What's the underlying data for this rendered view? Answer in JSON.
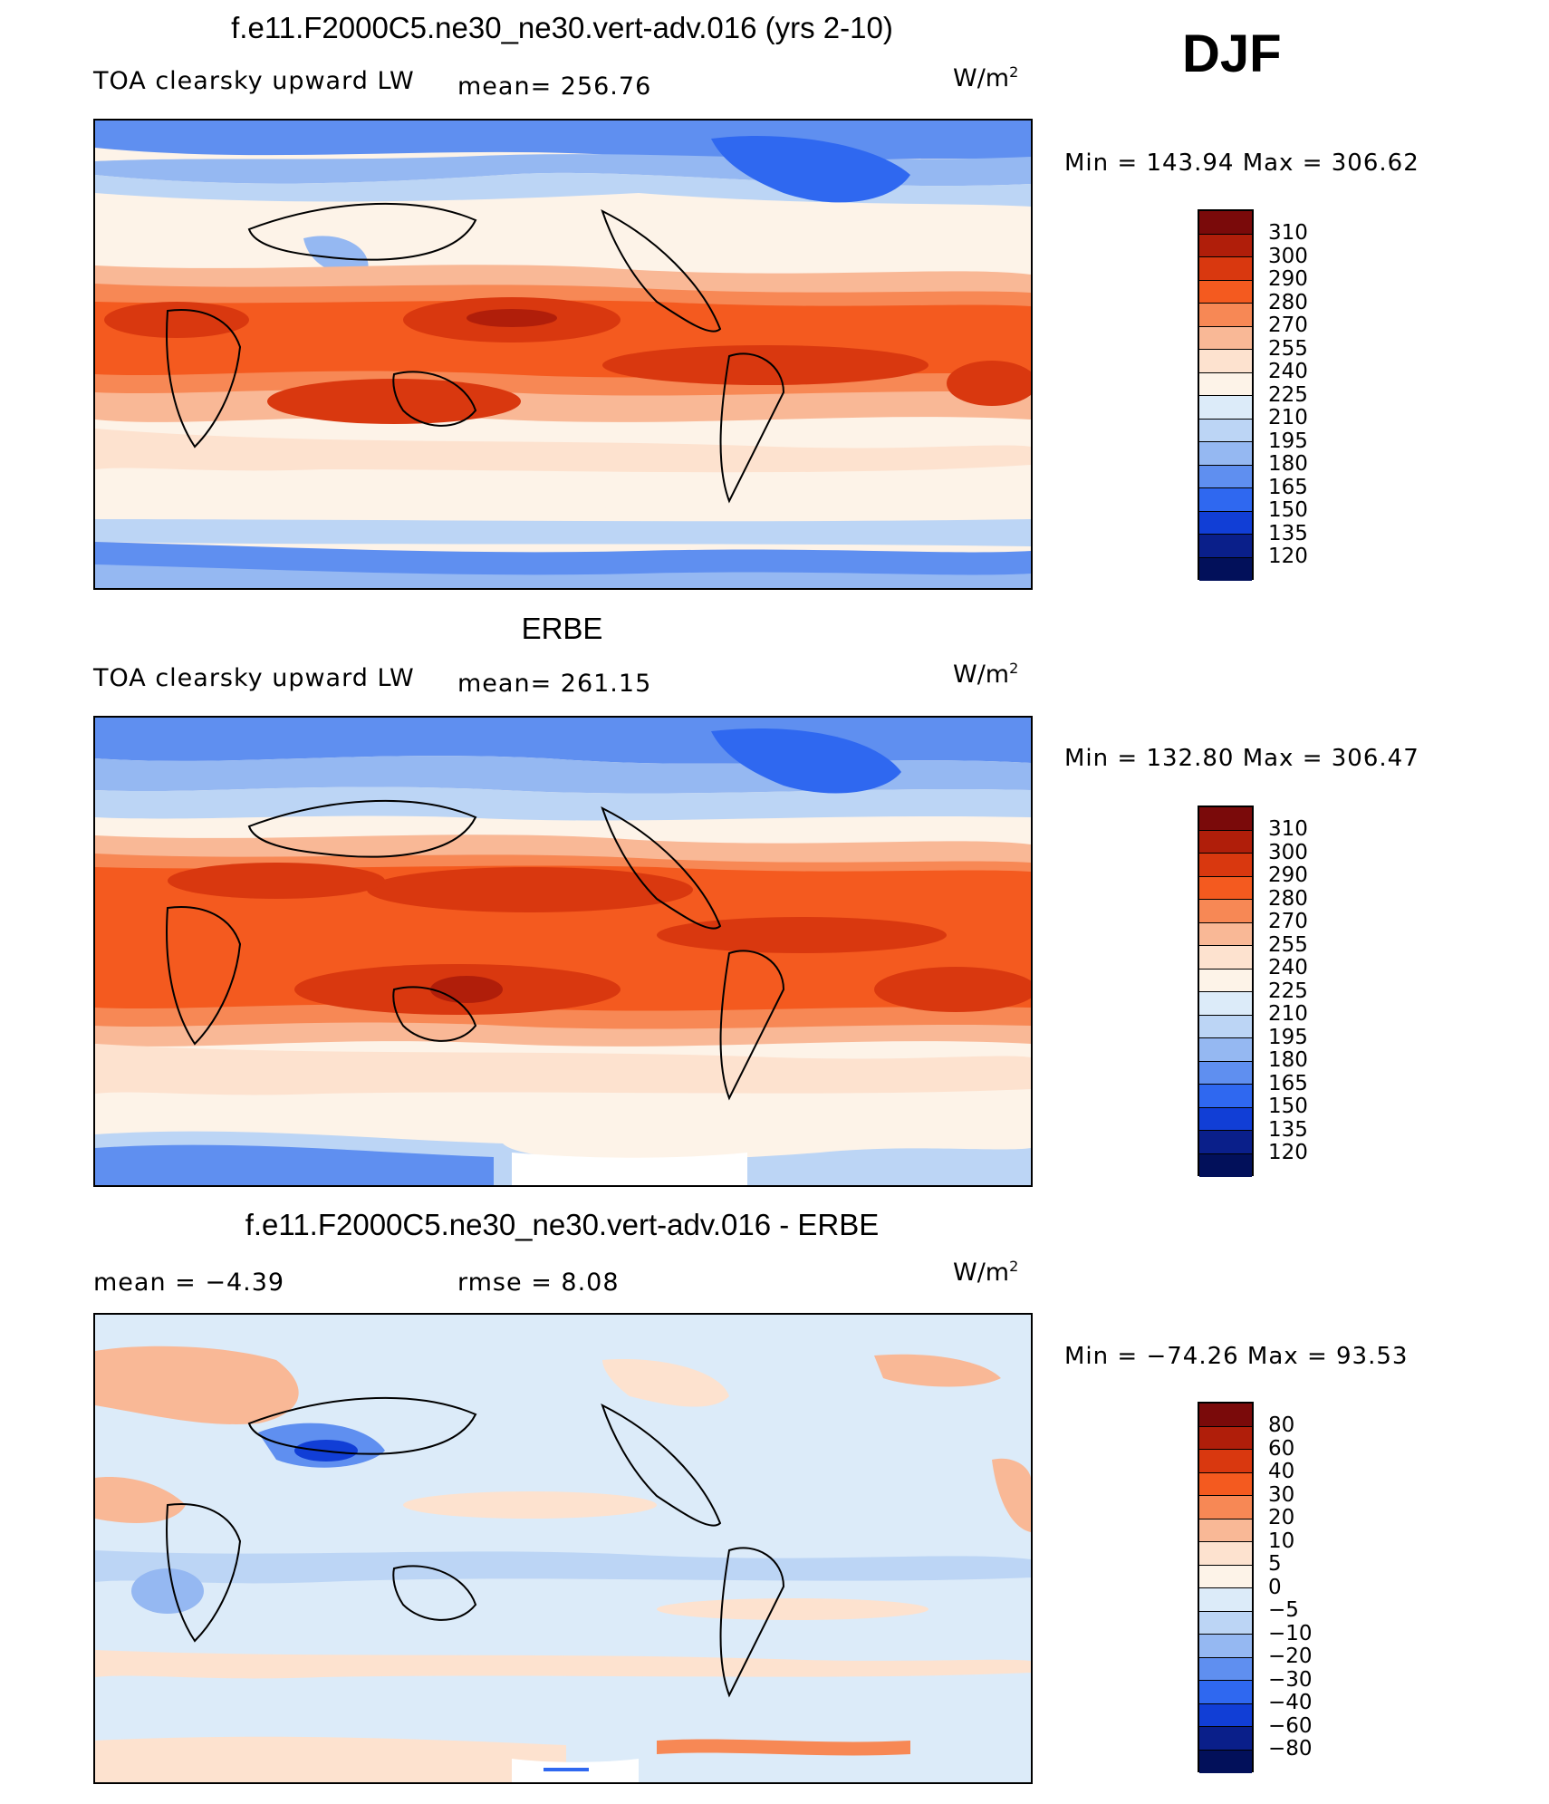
{
  "season": "DJF",
  "panels": [
    {
      "title": "f.e11.F2000C5.ne30_ne30.vert-adv.016 (yrs 2-10)",
      "variable": "TOA clearsky upward LW",
      "stat1": "mean= 256.76",
      "stat2": "",
      "units_base": "W/m",
      "units_exp": "2",
      "minmax": "Min = 143.94 Max = 306.62",
      "scale": [
        "310",
        "300",
        "290",
        "280",
        "270",
        "255",
        "240",
        "225",
        "210",
        "195",
        "180",
        "165",
        "150",
        "135",
        "120"
      ]
    },
    {
      "title": "ERBE",
      "variable": "TOA clearsky upward LW",
      "stat1": "mean= 261.15",
      "stat2": "",
      "units_base": "W/m",
      "units_exp": "2",
      "minmax": "Min = 132.80 Max = 306.47",
      "scale": [
        "310",
        "300",
        "290",
        "280",
        "270",
        "255",
        "240",
        "225",
        "210",
        "195",
        "180",
        "165",
        "150",
        "135",
        "120"
      ]
    },
    {
      "title": "f.e11.F2000C5.ne30_ne30.vert-adv.016 - ERBE",
      "variable": "",
      "stat1": "mean =   −4.39",
      "stat2": "rmse =    8.08",
      "units_base": "W/m",
      "units_exp": "2",
      "minmax": "Min = −74.26 Max =  93.53",
      "scale": [
        "80",
        "60",
        "40",
        "30",
        "20",
        "10",
        "5",
        "0",
        "−5",
        "−10",
        "−20",
        "−30",
        "−40",
        "−60",
        "−80"
      ]
    }
  ],
  "colors": {
    "palette": [
      "#7a0a0a",
      "#b01e0a",
      "#d9380f",
      "#f45a1f",
      "#f78855",
      "#f9b896",
      "#fde2cf",
      "#fdf3e8",
      "#dcebf9",
      "#bcd5f5",
      "#95b8f2",
      "#5f8ff0",
      "#2f68f0",
      "#113ed6",
      "#0a1f8a",
      "#02105a"
    ]
  }
}
